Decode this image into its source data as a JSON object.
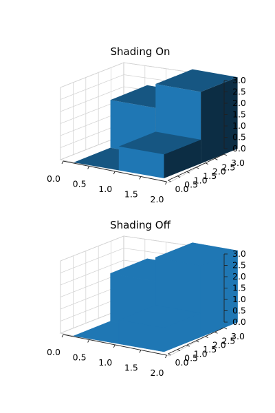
{
  "chart_data": [
    {
      "type": "bar3d",
      "title": "Shading On",
      "shade": true,
      "x_edges": [
        0,
        1,
        2
      ],
      "y_edges": [
        0,
        1.5,
        3
      ],
      "bars": [
        {
          "x": 0,
          "y": 0,
          "dx": 1,
          "dy": 1.5,
          "top": 0
        },
        {
          "x": 1,
          "y": 0,
          "dx": 1,
          "dy": 1.5,
          "top": 1
        },
        {
          "x": 0,
          "y": 1.5,
          "dx": 1,
          "dy": 1.5,
          "top": 2
        },
        {
          "x": 1,
          "y": 1.5,
          "dx": 1,
          "dy": 1.5,
          "top": 3
        }
      ],
      "x_ticks": [
        "0.0",
        "0.5",
        "1.0",
        "1.5",
        "2.0"
      ],
      "y_ticks": [
        "0.0",
        "0.5",
        "1.0",
        "1.5",
        "2.0",
        "2.5",
        "3.0"
      ],
      "z_ticks": [
        "0.0",
        "0.5",
        "1.0",
        "1.5",
        "2.0",
        "2.5",
        "3.0"
      ],
      "xlim": [
        0,
        2
      ],
      "ylim": [
        0,
        3
      ],
      "zlim": [
        0,
        3
      ],
      "grid": true,
      "color": "#1f77b4"
    },
    {
      "type": "bar3d",
      "title": "Shading Off",
      "shade": false,
      "x_edges": [
        0,
        1,
        2
      ],
      "y_edges": [
        0,
        1.5,
        3
      ],
      "bars": [
        {
          "x": 0,
          "y": 0,
          "dx": 1,
          "dy": 1.5,
          "top": 0
        },
        {
          "x": 1,
          "y": 0,
          "dx": 1,
          "dy": 1.5,
          "top": 1
        },
        {
          "x": 0,
          "y": 1.5,
          "dx": 1,
          "dy": 1.5,
          "top": 2
        },
        {
          "x": 1,
          "y": 1.5,
          "dx": 1,
          "dy": 1.5,
          "top": 3
        }
      ],
      "x_ticks": [
        "0.0",
        "0.5",
        "1.0",
        "1.5",
        "2.0"
      ],
      "y_ticks": [
        "0.0",
        "0.5",
        "1.0",
        "1.5",
        "2.0",
        "2.5",
        "3.0"
      ],
      "z_ticks": [
        "0.0",
        "0.5",
        "1.0",
        "1.5",
        "2.0",
        "2.5",
        "3.0"
      ],
      "xlim": [
        0,
        2
      ],
      "ylim": [
        0,
        3
      ],
      "zlim": [
        0,
        3
      ],
      "grid": true,
      "color": "#1f77b4"
    }
  ]
}
